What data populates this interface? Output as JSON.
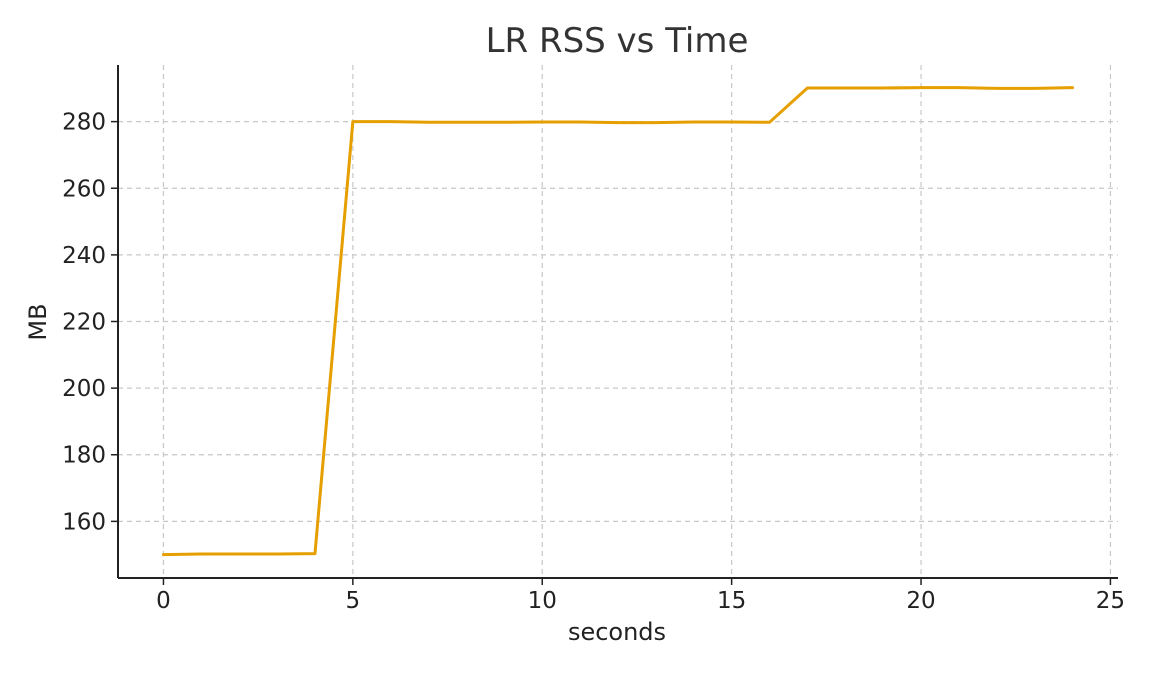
{
  "chart_data": {
    "type": "line",
    "title": "LR RSS vs Time",
    "xlabel": "seconds",
    "ylabel": "MB",
    "xlim": [
      -1.2,
      25.2
    ],
    "ylim": [
      143,
      297
    ],
    "xticks": [
      0,
      5,
      10,
      15,
      20,
      25
    ],
    "yticks": [
      160,
      180,
      200,
      220,
      240,
      260,
      280
    ],
    "grid": true,
    "series": [
      {
        "color": "#E69F00",
        "x": [
          0,
          1,
          2,
          3,
          4,
          5,
          6,
          7,
          8,
          9,
          10,
          11,
          12,
          13,
          14,
          15,
          16,
          17,
          18,
          19,
          20,
          21,
          22,
          23,
          24
        ],
        "y": [
          150.0,
          150.2,
          150.2,
          150.2,
          150.3,
          280.0,
          280.0,
          279.8,
          279.8,
          279.8,
          279.9,
          279.9,
          279.7,
          279.7,
          279.9,
          279.9,
          279.8,
          290.1,
          290.1,
          290.1,
          290.2,
          290.2,
          290.0,
          290.0,
          290.2
        ]
      }
    ]
  }
}
